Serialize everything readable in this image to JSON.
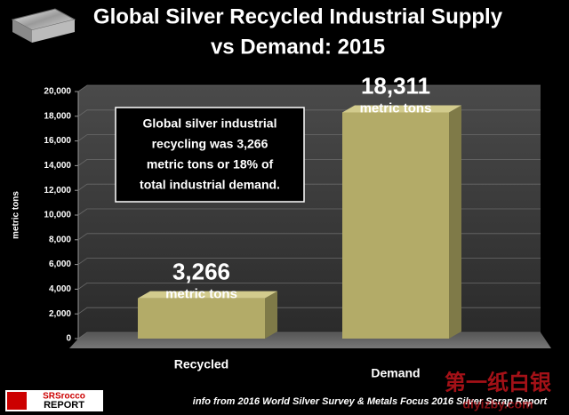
{
  "chart_data": {
    "type": "bar3d",
    "title_lines": [
      "Global Silver Recycled Industrial Supply",
      "vs Demand: 2015"
    ],
    "y_axis_label": "metric tons",
    "categories": [
      "Recycled",
      "Demand"
    ],
    "values": [
      3266,
      18311
    ],
    "value_labels": [
      "3,266",
      "18,311"
    ],
    "value_unit": "metric tons",
    "color": "#b3ab68",
    "ylim": [
      0,
      20000
    ],
    "yticks": [
      0,
      {
        "value": 2000,
        "label": "2,000"
      },
      {
        "value": 4000,
        "label": "4,000"
      },
      {
        "value": 6000,
        "label": "6,000"
      },
      {
        "value": 8000,
        "label": "8,000"
      },
      {
        "value": 10000,
        "label": "10,000"
      },
      {
        "value": 12000,
        "label": "12,000"
      },
      {
        "value": 14000,
        "label": "14,000"
      },
      {
        "value": 16000,
        "label": "16,000"
      },
      {
        "value": 18000,
        "label": "18,000"
      },
      {
        "value": 20000,
        "label": "20,000"
      }
    ],
    "grid": true,
    "annotation_lines": [
      "Global silver industrial",
      "recycling was 3,266",
      "metric tons or 18% of",
      "total industrial demand."
    ],
    "source": "info from 2016 World Silver Survey & Metals Focus 2016 Silver Scrap Report",
    "logo": [
      "SRSrocco",
      "REPORT"
    ],
    "watermark": [
      "第一纸白银",
      "diyizby.com"
    ]
  }
}
